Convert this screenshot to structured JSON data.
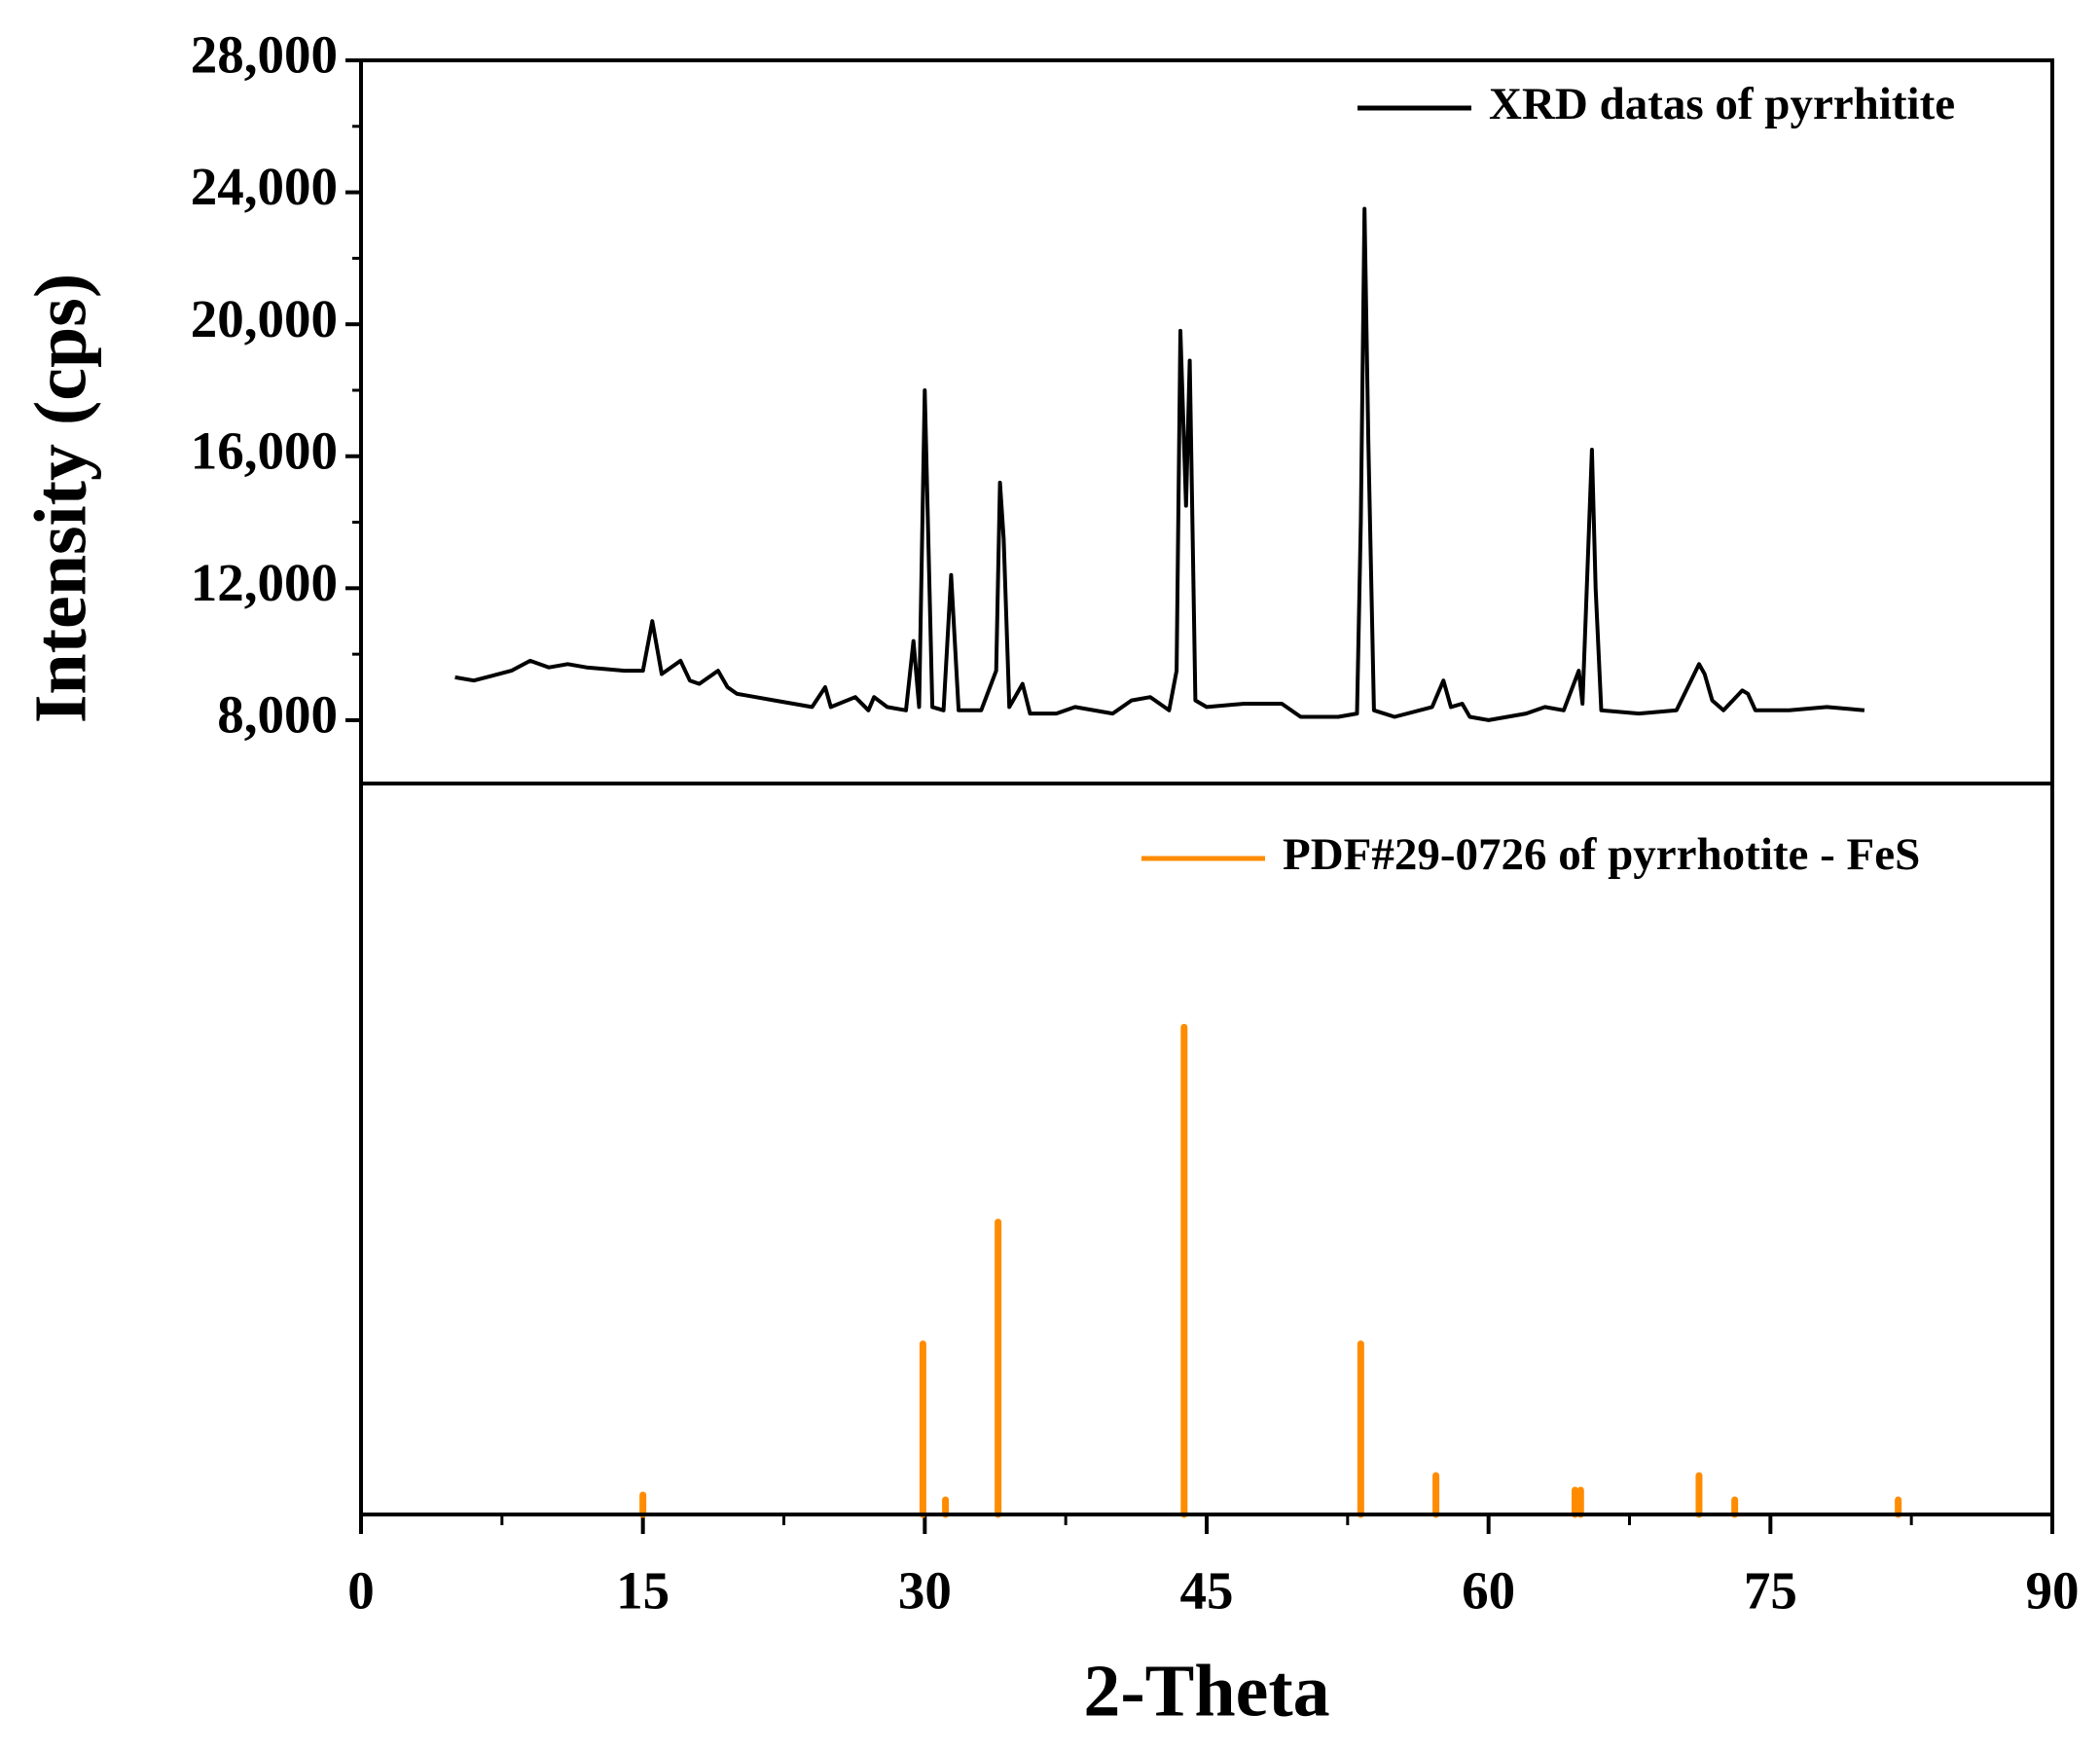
{
  "chart_data": [
    {
      "type": "line",
      "ylabel": "Intensity (cps)",
      "xlim": [
        0,
        90
      ],
      "ylim": [
        6080,
        28000
      ],
      "yticks": [
        {
          "value": 8000,
          "label": "8,000"
        },
        {
          "value": 12000,
          "label": "12,000"
        },
        {
          "value": 16000,
          "label": "16,000"
        },
        {
          "value": 20000,
          "label": "20,000"
        },
        {
          "value": 24000,
          "label": "24,000"
        },
        {
          "value": 28000,
          "label": "28,000"
        }
      ],
      "legend": "top-right",
      "series": [
        {
          "name": "XRD datas of pyrrhitite",
          "color": "#000000",
          "x": [
            5,
            6,
            7,
            8,
            9,
            10,
            11,
            12,
            13,
            14,
            15,
            15.5,
            16,
            17,
            17.5,
            18,
            19,
            19.5,
            20,
            21,
            22,
            23,
            24,
            24.7,
            25,
            26.3,
            27,
            27.3,
            28,
            29,
            29.4,
            29.7,
            30,
            30.4,
            31,
            31.4,
            31.8,
            33,
            33.8,
            34,
            34.2,
            34.5,
            35.2,
            35.6,
            37,
            38,
            40,
            41,
            42,
            43,
            43.4,
            43.6,
            43.9,
            44.1,
            44.4,
            45,
            47,
            49,
            50,
            52,
            53,
            53.2,
            53.4,
            53.6,
            53.9,
            55,
            57,
            57.6,
            58,
            58.6,
            59,
            60,
            62,
            63,
            64,
            64.8,
            65,
            65.5,
            65.7,
            66,
            68,
            70,
            71.2,
            71.5,
            71.9,
            72.5,
            73.5,
            73.8,
            74.2,
            76,
            78,
            80
          ],
          "values": [
            9300,
            9200,
            9350,
            9500,
            9800,
            9600,
            9700,
            9600,
            9550,
            9500,
            9500,
            11000,
            9400,
            9800,
            9200,
            9100,
            9500,
            9000,
            8800,
            8700,
            8600,
            8500,
            8400,
            9000,
            8400,
            8700,
            8300,
            8700,
            8400,
            8300,
            10400,
            8400,
            18000,
            8400,
            8300,
            12400,
            8300,
            8300,
            9500,
            15200,
            13500,
            8400,
            9100,
            8200,
            8200,
            8400,
            8200,
            8600,
            8700,
            8300,
            9500,
            19800,
            14500,
            18900,
            8600,
            8400,
            8500,
            8500,
            8100,
            8100,
            8200,
            14000,
            23500,
            16500,
            8300,
            8100,
            8400,
            9200,
            8400,
            8500,
            8100,
            8000,
            8200,
            8400,
            8300,
            9500,
            8500,
            16200,
            12000,
            8300,
            8200,
            8300,
            9700,
            9400,
            8600,
            8300,
            8900,
            8800,
            8300,
            8300,
            8400,
            8300
          ]
        }
      ]
    },
    {
      "type": "bar",
      "xlabel": "2-Theta",
      "xlim": [
        0,
        90
      ],
      "xticks": [
        0,
        15,
        30,
        45,
        60,
        75,
        90
      ],
      "ylim": [
        0,
        150
      ],
      "legend": "top-right",
      "series": [
        {
          "name": "PDF#29-0726 of pyrrhotite - FeS",
          "color": "#ff8c00",
          "x": [
            15,
            29.9,
            31.1,
            33.9,
            43.8,
            53.2,
            57.2,
            64.6,
            64.9,
            71.2,
            73.1,
            81.8
          ],
          "values": [
            4,
            35,
            3,
            60,
            100,
            35,
            8,
            5,
            5,
            8,
            3,
            3
          ]
        }
      ]
    }
  ]
}
